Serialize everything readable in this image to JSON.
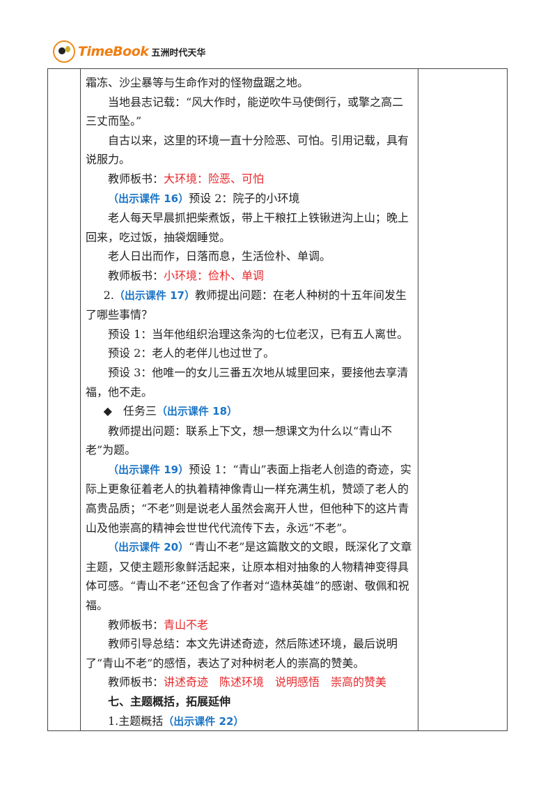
{
  "header": {
    "logo_en": "TimeBook",
    "logo_cn": "五洲时代天华"
  },
  "colors": {
    "red": "#e8262a",
    "blue": "#1a74c6"
  },
  "paragraphs": [
    {
      "indent": "none",
      "segs": [
        {
          "t": "霜冻、沙尘暴等与生命作对的怪物盘踞之地。"
        }
      ]
    },
    {
      "segs": [
        {
          "t": "当地县志记载：“风大作时，能逆吹牛马使倒行，或擎之高二三丈而坠。”"
        }
      ]
    },
    {
      "segs": [
        {
          "t": "自古以来，这里的环境一直十分险恶、可怕。引用记载，具有说服力。"
        }
      ]
    },
    {
      "segs": [
        {
          "t": "教师板书："
        },
        {
          "t": "大环境：险恶、可怕",
          "s": "red"
        }
      ]
    },
    {
      "segs": [
        {
          "t": "（出示课件 16）",
          "s": "blue"
        },
        {
          "t": "预设 2：院子的小环境"
        }
      ]
    },
    {
      "segs": [
        {
          "t": "老人每天早晨抓把柴煮饭，带上干粮扛上铁锹进沟上山；晚上回来，吃过饭，抽袋烟睡觉。"
        }
      ]
    },
    {
      "segs": [
        {
          "t": "老人日出而作，日落而息，生活俭朴、单调。"
        }
      ]
    },
    {
      "segs": [
        {
          "t": "教师板书："
        },
        {
          "t": "小环境：俭朴、单调",
          "s": "red"
        }
      ]
    },
    {
      "indent": "half",
      "segs": [
        {
          "t": "2."
        },
        {
          "t": "（出示课件 17）",
          "s": "blue"
        },
        {
          "t": "教师提出问题：在老人种树的十五年间发生了哪些事情？"
        }
      ]
    },
    {
      "segs": [
        {
          "t": "预设 1：当年他组织治理这条沟的七位老汉，已有五人离世。"
        }
      ]
    },
    {
      "segs": [
        {
          "t": "预设 2：老人的老伴儿也过世了。"
        }
      ]
    },
    {
      "segs": [
        {
          "t": "预设 3：他唯一的女儿三番五次地从城里回来，要接他去享清福，他不走。"
        }
      ]
    },
    {
      "indent": "half",
      "segs": [
        {
          "t": "◆　任务三"
        },
        {
          "t": "（出示课件 18）",
          "s": "blue"
        }
      ]
    },
    {
      "segs": [
        {
          "t": "教师提出问题：联系上下文，想一想课文为什么以“青山不老”为题。"
        }
      ]
    },
    {
      "segs": [
        {
          "t": "（出示课件 19）",
          "s": "blue"
        },
        {
          "t": "预设 1：“青山”表面上指老人创造的奇迹，实际上更象征着老人的执着精神像青山一样充满生机，赞颂了老人的高贵品质；“不老”则是说老人虽然会离开人世，但他种下的这片青山及他崇高的精神会世世代代流传下去，永远“不老”。"
        }
      ]
    },
    {
      "segs": [
        {
          "t": "（出示课件 20）",
          "s": "blue"
        },
        {
          "t": "“青山不老”是这篇散文的文眼，既深化了文章主题，又使主题形象鲜活起来，让原本相对抽象的人物精神变得具体可感。“青山不老”还包含了作者对“造林英雄”的感谢、敬佩和祝福。"
        }
      ]
    },
    {
      "segs": [
        {
          "t": "教师板书："
        },
        {
          "t": "青山不老",
          "s": "red"
        }
      ]
    },
    {
      "segs": [
        {
          "t": "教师引导总结：本文先讲述奇迹，然后陈述环境，最后说明了“青山不老”的感悟，表达了对种树老人的崇高的赞美。"
        }
      ]
    },
    {
      "segs": [
        {
          "t": "教师板书："
        },
        {
          "t": "讲述奇迹　陈述环境　说明感悟　崇高的赞美",
          "s": "red"
        }
      ]
    },
    {
      "segs": [
        {
          "t": "七、主题概括，拓展延伸",
          "s": "bold"
        }
      ]
    },
    {
      "segs": [
        {
          "t": "1.主题概括"
        },
        {
          "t": "（出示课件 22）",
          "s": "blue"
        }
      ]
    }
  ]
}
